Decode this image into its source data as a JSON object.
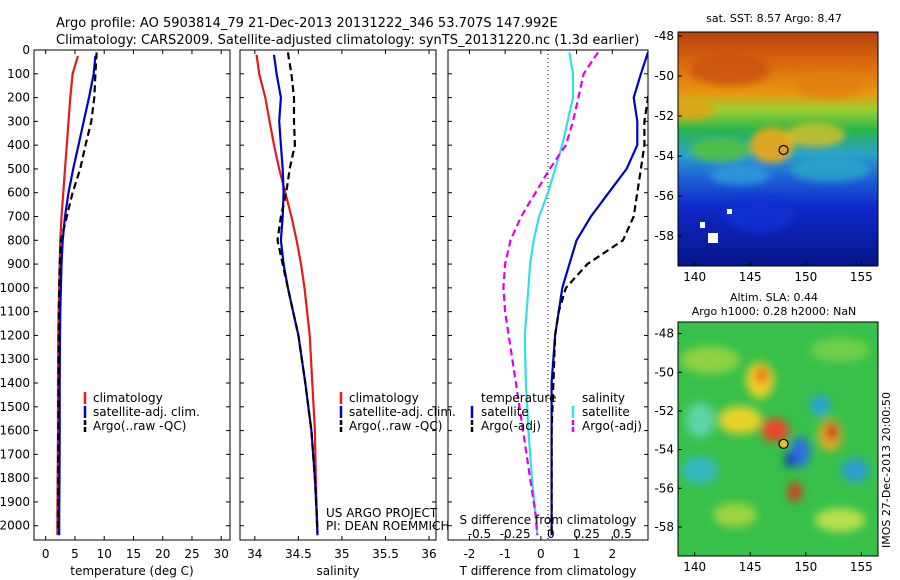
{
  "header": {
    "line1": "Argo profile: AO 5903814_79 21-Dec-2013 20131222_346 53.707S 147.992E",
    "line2": "Climatology: CARS2009. Satellite-adjusted climatology: synTS_20131220.nc (1.3d earlier)"
  },
  "project": {
    "line1": "US ARGO PROJECT",
    "line2": "PI: DEAN ROEMMICH"
  },
  "stamp": "IMOS 27-Dec-2013 20:00:50",
  "colors": {
    "red": "#e41a1c",
    "blue": "#0000cc",
    "cyan": "#33e0e0",
    "magenta": "#e600e6",
    "black": "#000000"
  },
  "depth_ticks": [
    0,
    100,
    200,
    300,
    400,
    500,
    600,
    700,
    800,
    900,
    1000,
    1100,
    1200,
    1300,
    1400,
    1500,
    1600,
    1700,
    1800,
    1900,
    2000
  ],
  "chart_data": [
    {
      "type": "line",
      "xlabel": "temperature (deg C)",
      "xticks": [
        0,
        5,
        10,
        15,
        20,
        25,
        30
      ],
      "xlim": [
        -2,
        31.5
      ],
      "ylim": [
        2060,
        0
      ],
      "legend": [
        "climatology",
        "satellite-adj. clim.",
        "Argo(..raw -QC)"
      ],
      "series": [
        {
          "name": "climatology",
          "color": "red",
          "style": "solid",
          "x": [
            5.5,
            4.6,
            4.2,
            3.9,
            3.6,
            3.3,
            3.0,
            2.7,
            2.5,
            2.4,
            2.3,
            2.2,
            2.15,
            2.1,
            2.1,
            2.05,
            2.0,
            2.0
          ],
          "y": [
            25,
            100,
            200,
            300,
            400,
            500,
            600,
            700,
            800,
            900,
            1000,
            1100,
            1200,
            1400,
            1600,
            1800,
            1950,
            2040
          ]
        },
        {
          "name": "satellite-adj. clim.",
          "color": "blue",
          "style": "solid",
          "x": [
            8.5,
            8.2,
            7.4,
            6.5,
            5.6,
            4.7,
            3.9,
            3.3,
            2.9,
            2.7,
            2.6,
            2.5,
            2.45,
            2.4,
            2.4,
            2.35,
            2.3,
            2.3
          ],
          "y": [
            25,
            100,
            200,
            300,
            400,
            500,
            600,
            700,
            800,
            900,
            1000,
            1100,
            1200,
            1400,
            1600,
            1800,
            1950,
            2040
          ]
        },
        {
          "name": "Argo(..raw -QC)",
          "color": "black",
          "style": "dashed",
          "x": [
            8.7,
            8.5,
            8.3,
            7.8,
            6.8,
            5.9,
            4.6,
            3.6,
            2.6,
            2.4,
            2.3,
            2.25,
            2.2,
            2.2,
            2.15,
            2.1,
            2.1,
            2.1
          ],
          "y": [
            10,
            100,
            200,
            300,
            400,
            500,
            600,
            700,
            800,
            900,
            1000,
            1100,
            1200,
            1400,
            1600,
            1800,
            1950,
            2030
          ]
        }
      ]
    },
    {
      "type": "line",
      "xlabel": "salinity",
      "xticks": [
        34,
        34.5,
        35,
        35.5,
        36
      ],
      "xlim": [
        33.83,
        36.08
      ],
      "ylim": [
        2060,
        0
      ],
      "legend": [
        "climatology",
        "satellite-adj. clim.",
        "Argo(..raw -QC)"
      ],
      "series": [
        {
          "name": "climatology",
          "color": "red",
          "style": "solid",
          "x": [
            34.02,
            34.05,
            34.12,
            34.17,
            34.22,
            34.28,
            34.35,
            34.42,
            34.48,
            34.53,
            34.57,
            34.6,
            34.63,
            34.66,
            34.69,
            34.7,
            34.71,
            34.72
          ],
          "y": [
            20,
            100,
            200,
            300,
            400,
            500,
            600,
            700,
            800,
            900,
            1000,
            1100,
            1200,
            1400,
            1600,
            1800,
            1950,
            2040
          ]
        },
        {
          "name": "satellite-adj. clim.",
          "color": "blue",
          "style": "solid",
          "x": [
            34.22,
            34.25,
            34.3,
            34.28,
            34.3,
            34.32,
            34.33,
            34.32,
            34.3,
            34.33,
            34.38,
            34.44,
            34.5,
            34.58,
            34.65,
            34.69,
            34.71,
            34.72
          ],
          "y": [
            20,
            100,
            200,
            300,
            400,
            500,
            600,
            700,
            800,
            900,
            1000,
            1100,
            1200,
            1400,
            1600,
            1800,
            1950,
            2040
          ]
        },
        {
          "name": "Argo(..raw -QC)",
          "color": "black",
          "style": "dashed",
          "x": [
            34.38,
            34.42,
            34.45,
            34.45,
            34.46,
            34.4,
            34.36,
            34.3,
            34.26,
            34.32,
            34.38,
            34.44,
            34.5,
            34.58,
            34.65,
            34.69,
            34.71,
            34.72
          ],
          "y": [
            10,
            100,
            200,
            300,
            400,
            500,
            600,
            700,
            800,
            900,
            1000,
            1100,
            1200,
            1400,
            1600,
            1800,
            1950,
            2030
          ]
        }
      ]
    },
    {
      "type": "line",
      "xlabel": "T difference from climatology",
      "toplabel": "S difference from climatology",
      "xticks": [
        -2,
        -1,
        0,
        1,
        2
      ],
      "sticks": [
        "-0.5",
        "-0.25",
        "0",
        "0.25",
        "0.5"
      ],
      "xlim": [
        -2.6,
        3.0
      ],
      "ylim": [
        2060,
        0
      ],
      "legend_left_title": "temperature",
      "legend_right_title": "salinity",
      "legend_left": [
        "satellite",
        "Argo(-adj)"
      ],
      "legend_right": [
        "satellite",
        "Argo(-adj)"
      ],
      "series": [
        {
          "name": "temperature satellite",
          "color": "blue",
          "style": "solid",
          "x": [
            3.0,
            2.8,
            2.6,
            2.7,
            2.7,
            2.4,
            1.9,
            1.4,
            1.0,
            0.8,
            0.6,
            0.5,
            0.4,
            0.3,
            0.3,
            0.3,
            0.3,
            0.3
          ],
          "y": [
            10,
            100,
            200,
            300,
            400,
            500,
            600,
            700,
            800,
            900,
            1000,
            1100,
            1200,
            1400,
            1600,
            1800,
            1950,
            2040
          ]
        },
        {
          "name": "temperature Argo(-adj)",
          "color": "black",
          "style": "dashed",
          "x": [
            3.1,
            3.1,
            3.0,
            2.9,
            2.9,
            2.8,
            2.7,
            2.6,
            2.3,
            1.3,
            0.7,
            0.5,
            0.4,
            0.35,
            0.3,
            0.3,
            0.3,
            0.3
          ],
          "y": [
            10,
            100,
            200,
            300,
            400,
            500,
            600,
            700,
            800,
            900,
            1000,
            1100,
            1200,
            1400,
            1600,
            1800,
            1950,
            2040
          ]
        },
        {
          "name": "salinity satellite",
          "color": "cyan",
          "style": "solid",
          "x": [
            0.8,
            0.9,
            0.9,
            0.75,
            0.6,
            0.4,
            0.2,
            -0.05,
            -0.2,
            -0.3,
            -0.35,
            -0.4,
            -0.45,
            -0.42,
            -0.35,
            -0.25,
            -0.15,
            -0.1
          ],
          "y": [
            10,
            100,
            200,
            300,
            400,
            500,
            600,
            700,
            800,
            900,
            1000,
            1100,
            1200,
            1400,
            1600,
            1800,
            1950,
            2040
          ]
        },
        {
          "name": "salinity Argo(-adj)",
          "color": "magenta",
          "style": "dashed",
          "x": [
            1.6,
            1.2,
            1.05,
            0.9,
            0.7,
            0.25,
            -0.15,
            -0.55,
            -0.85,
            -1.0,
            -1.05,
            -1.0,
            -0.9,
            -0.7,
            -0.5,
            -0.3,
            -0.15,
            -0.1
          ],
          "y": [
            10,
            100,
            200,
            300,
            400,
            500,
            600,
            700,
            800,
            900,
            1000,
            1100,
            1200,
            1400,
            1600,
            1800,
            1950,
            2040
          ]
        }
      ]
    },
    {
      "type": "heatmap",
      "title": "sat. SST: 8.57 Argo: 8.47",
      "xticks": [
        140,
        145,
        150,
        155
      ],
      "yticks": [
        -48,
        -50,
        -52,
        -54,
        -56,
        -58
      ],
      "xlim": [
        138.5,
        156.5
      ],
      "ylim": [
        -47.8,
        -59.5
      ],
      "marker": {
        "lon": 148.0,
        "lat": -53.7
      }
    },
    {
      "type": "heatmap",
      "title_line1": "Altim. SLA: 0.44",
      "title_line2": "Argo h1000: 0.28 h2000: NaN",
      "xticks": [
        140,
        145,
        150,
        155
      ],
      "yticks": [
        -48,
        -50,
        -52,
        -54,
        -56,
        -58
      ],
      "xlim": [
        138.5,
        156.5
      ],
      "ylim": [
        -47.4,
        -59.5
      ],
      "marker": {
        "lon": 148.0,
        "lat": -53.7
      }
    }
  ]
}
